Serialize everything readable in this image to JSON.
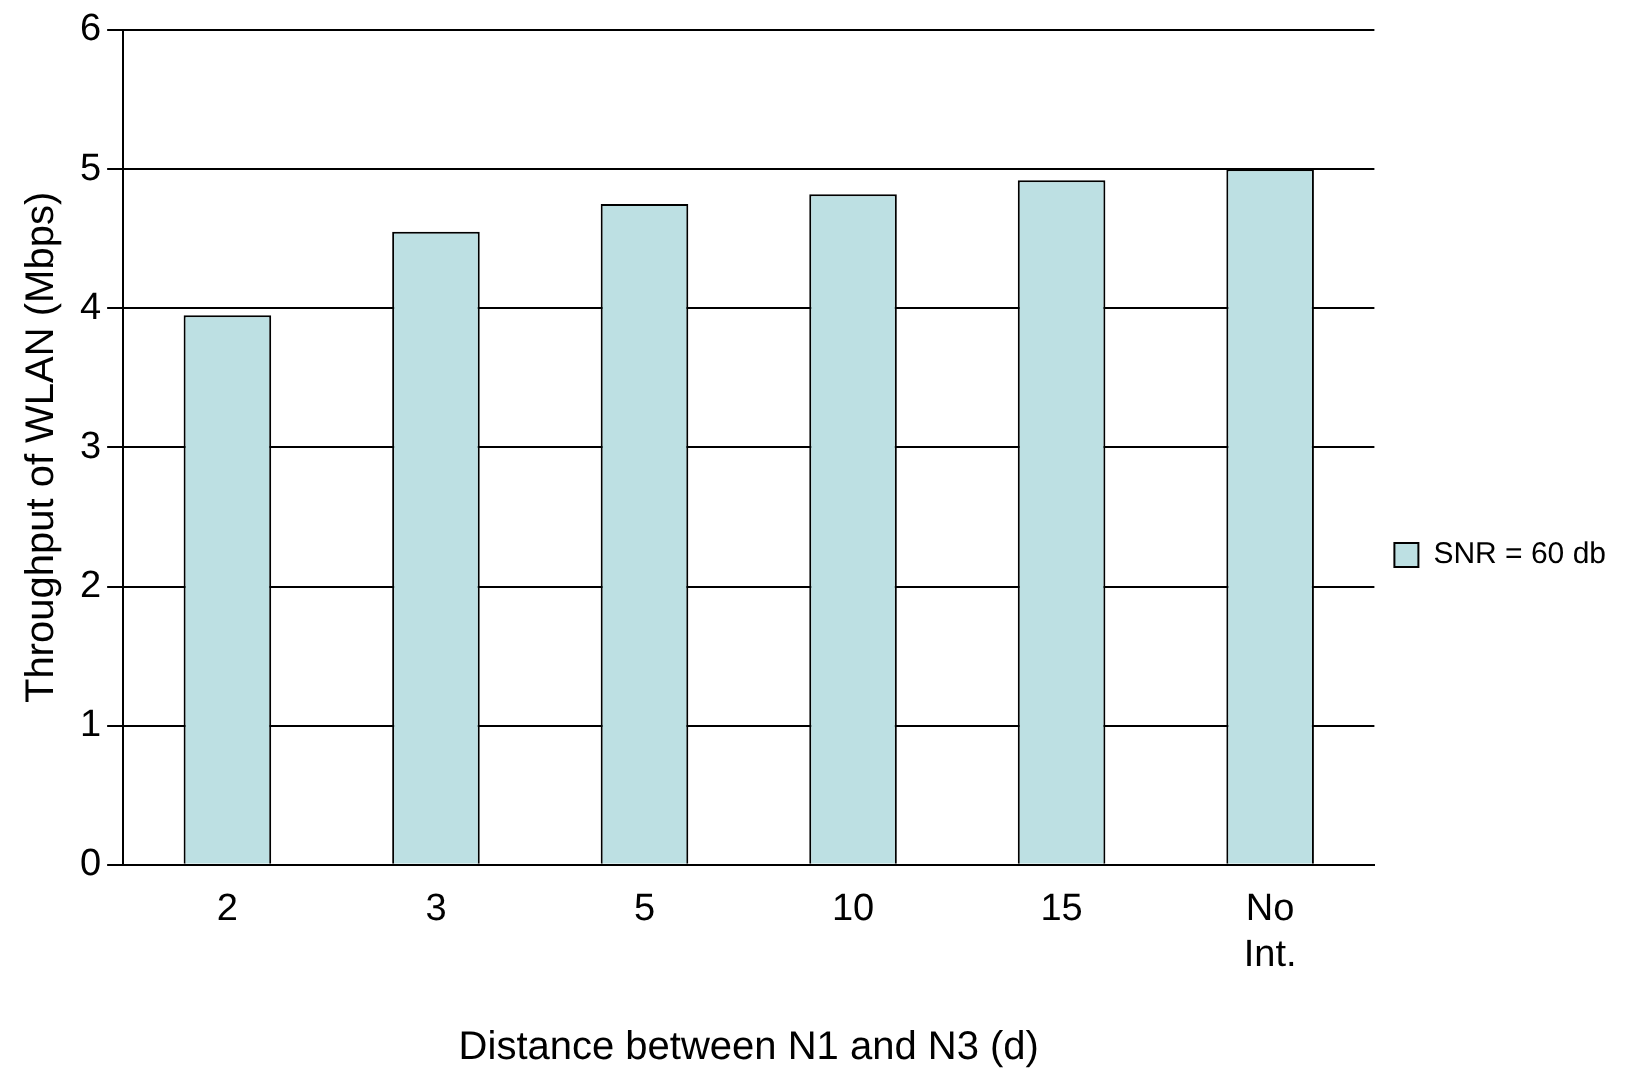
{
  "chart_data": {
    "type": "bar",
    "xlabel": "Distance between N1 and N3 (d)",
    "ylabel": "Throughput of WLAN (Mbps)",
    "categories": [
      "2",
      "3",
      "5",
      "10",
      "15",
      "No Int."
    ],
    "series": [
      {
        "name": "SNR = 60 db",
        "color": "#bde0e3",
        "values": [
          3.95,
          4.55,
          4.75,
          4.82,
          4.92,
          5.0
        ]
      }
    ],
    "ylim": [
      0,
      6
    ],
    "yticks": [
      0,
      1,
      2,
      3,
      4,
      5,
      6
    ],
    "grid": "y",
    "legend": "right"
  }
}
